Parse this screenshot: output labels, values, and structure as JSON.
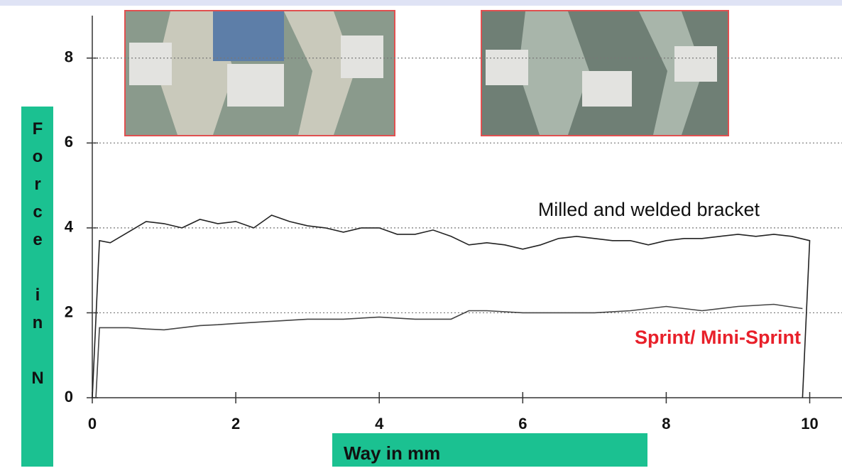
{
  "chart_data": {
    "type": "line",
    "x_label": "Way in mm",
    "y_label": "Force in N",
    "xlim": [
      0,
      10.45
    ],
    "ylim": [
      0,
      9
    ],
    "xticks": [
      0,
      2,
      4,
      6,
      8,
      10
    ],
    "yticks": [
      0,
      2,
      4,
      6,
      8
    ],
    "grid": true,
    "series": [
      {
        "name": "Milled and welded bracket",
        "color": "#222222",
        "label_color": "#111111",
        "x": [
          0,
          0.1,
          0.25,
          0.5,
          0.75,
          1,
          1.25,
          1.5,
          1.75,
          2,
          2.25,
          2.5,
          2.75,
          3,
          3.25,
          3.5,
          3.75,
          4,
          4.25,
          4.5,
          4.75,
          5,
          5.25,
          5.5,
          5.75,
          6,
          6.25,
          6.5,
          6.75,
          7,
          7.25,
          7.5,
          7.75,
          8,
          8.25,
          8.5,
          8.75,
          9,
          9.25,
          9.5,
          9.75,
          10,
          9.9
        ],
        "values": [
          0,
          3.7,
          3.65,
          3.9,
          4.15,
          4.1,
          4.0,
          4.2,
          4.1,
          4.15,
          4.0,
          4.3,
          4.15,
          4.05,
          4.0,
          3.9,
          4.0,
          4.0,
          3.85,
          3.85,
          3.95,
          3.8,
          3.6,
          3.65,
          3.6,
          3.5,
          3.6,
          3.75,
          3.8,
          3.75,
          3.7,
          3.7,
          3.6,
          3.7,
          3.75,
          3.75,
          3.8,
          3.85,
          3.8,
          3.85,
          3.8,
          3.7,
          0
        ]
      },
      {
        "name": "Sprint/ Mini-Sprint",
        "color": "#444444",
        "label_color": "#e8202a",
        "x": [
          0.05,
          0.1,
          0.25,
          0.5,
          0.75,
          1,
          1.25,
          1.5,
          1.75,
          2,
          2.5,
          3,
          3.5,
          4,
          4.5,
          5,
          5.25,
          5.5,
          6,
          6.5,
          7,
          7.5,
          8,
          8.5,
          9,
          9.5,
          9.9
        ],
        "values": [
          0,
          1.65,
          1.65,
          1.65,
          1.62,
          1.6,
          1.65,
          1.7,
          1.72,
          1.75,
          1.8,
          1.85,
          1.85,
          1.9,
          1.85,
          1.85,
          2.05,
          2.05,
          2.0,
          2.0,
          2.0,
          2.05,
          2.15,
          2.05,
          2.15,
          2.2,
          2.1
        ]
      }
    ]
  }
}
